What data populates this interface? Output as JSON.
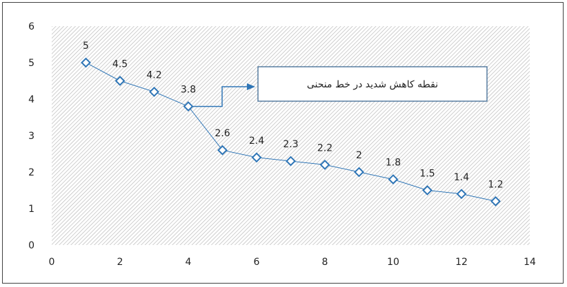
{
  "chart_data": {
    "type": "scatter",
    "title": "",
    "xlabel": "",
    "ylabel": "",
    "xlim": [
      0,
      14
    ],
    "ylim": [
      0,
      6
    ],
    "x_ticks": [
      "0",
      "2",
      "4",
      "6",
      "8",
      "10",
      "12",
      "14"
    ],
    "y_ticks": [
      "0",
      "1",
      "2",
      "3",
      "4",
      "5",
      "6"
    ],
    "grid": false,
    "plot_background": "hatched",
    "series": [
      {
        "x": [
          1,
          2,
          3,
          4,
          5,
          6,
          7,
          8,
          9,
          10,
          11,
          12,
          13
        ],
        "y": [
          5,
          4.5,
          4.2,
          3.8,
          2.6,
          2.4,
          2.3,
          2.2,
          2,
          1.8,
          1.5,
          1.4,
          1.2
        ],
        "labels": [
          "5",
          "4.5",
          "4.2",
          "3.8",
          "2.6",
          "2.4",
          "2.3",
          "2.2",
          "2",
          "1.8",
          "1.5",
          "1.4",
          "1.2"
        ],
        "marker": "diamond",
        "line": true,
        "color": "#2e75b6"
      }
    ],
    "annotation": {
      "text": "نقطه کاهش شدید در خط منحنی",
      "points_to": [
        4,
        3.8
      ]
    }
  }
}
